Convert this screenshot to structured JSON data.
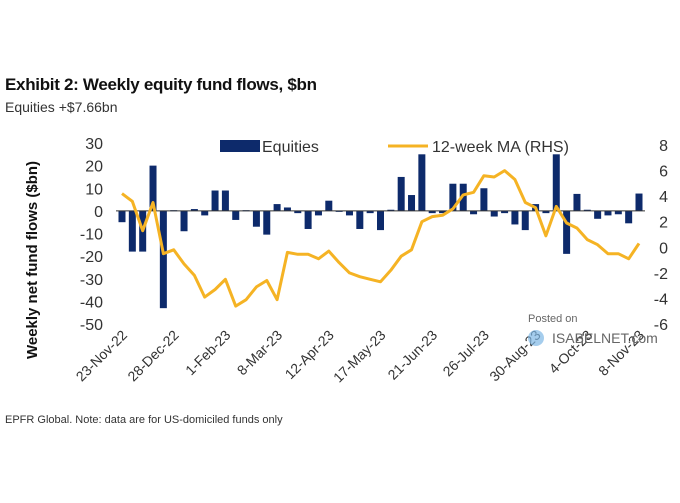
{
  "header": {
    "title": "Exhibit 2: Weekly equity fund flows, $bn",
    "subtitle": "Equities +$7.66bn"
  },
  "footer": {
    "note": "EPFR Global. Note: data are for US-domiciled funds only"
  },
  "watermark": {
    "line1": "Posted on",
    "line2": "ISABELNET.com"
  },
  "colors": {
    "bars": "#0d2a6b",
    "line": "#f5b324",
    "axis": "#333333"
  },
  "chart_data": {
    "type": "bar+line",
    "title": "Exhibit 2: Weekly equity fund flows, $bn",
    "subtitle": "Equities +$7.66bn",
    "ylabel": "Weekly net fund flows ($bn)",
    "y2label": "",
    "ylim": [
      -50,
      30
    ],
    "yticks": [
      "30",
      "20",
      "10",
      "0",
      "-10",
      "-20",
      "-30",
      "-40",
      "-50"
    ],
    "ytick_values": [
      30,
      20,
      10,
      0,
      -10,
      -20,
      -30,
      -40,
      -50
    ],
    "y2lim": [
      -6,
      8
    ],
    "y2ticks": [
      "8",
      "6",
      "4",
      "2",
      "0",
      "-2",
      "-4",
      "-6"
    ],
    "y2tick_values": [
      8,
      6,
      4,
      2,
      0,
      -2,
      -4,
      -6
    ],
    "xtick_labels": [
      "23-Nov-22",
      "28-Dec-22",
      "1-Feb-23",
      "8-Mar-23",
      "12-Apr-23",
      "17-May-23",
      "21-Jun-23",
      "26-Jul-23",
      "30-Aug-23",
      "4-Oct-23",
      "8-Nov-23"
    ],
    "xtick_every": 5,
    "num_weeks": 51,
    "legend": [
      "Equities",
      "12-week MA (RHS)"
    ],
    "legend_position": "top",
    "grid": false,
    "series": [
      {
        "name": "Equities",
        "type": "bar",
        "axis": "left",
        "values": [
          -5,
          -18,
          -18,
          20,
          -43,
          0.3,
          -9,
          0.8,
          -2,
          9,
          9,
          -4,
          0.3,
          -7,
          -10.5,
          3,
          1.5,
          -1,
          -8,
          -2,
          4.5,
          0,
          -2,
          -8,
          -1,
          -8.5,
          0.5,
          15,
          7,
          25,
          -1,
          -1,
          12,
          12,
          -1.5,
          10,
          -2.5,
          -1,
          -6,
          -8.5,
          3,
          -1,
          25,
          -19,
          7.5,
          0.5,
          -3.5,
          -2,
          -1.5,
          -5.5,
          7.66
        ]
      },
      {
        "name": "12-week MA (RHS)",
        "type": "line",
        "axis": "right",
        "values": [
          4.2,
          3.6,
          1.3,
          3.5,
          -0.5,
          -0.2,
          -1.3,
          -2.2,
          -3.9,
          -3.3,
          -2.5,
          -4.6,
          -4.1,
          -3.1,
          -2.6,
          -4.1,
          -0.4,
          -0.55,
          -0.55,
          -0.9,
          -0.3,
          -1.2,
          -2.0,
          -2.3,
          -2.5,
          -2.7,
          -1.8,
          -0.7,
          -0.2,
          2.0,
          2.4,
          2.5,
          3.0,
          4.1,
          4.3,
          5.6,
          5.5,
          6.0,
          5.3,
          3.5,
          3.1,
          0.9,
          3.2,
          1.9,
          1.5,
          0.6,
          0.2,
          -0.5,
          -0.5,
          -0.9,
          0.3
        ]
      }
    ]
  }
}
